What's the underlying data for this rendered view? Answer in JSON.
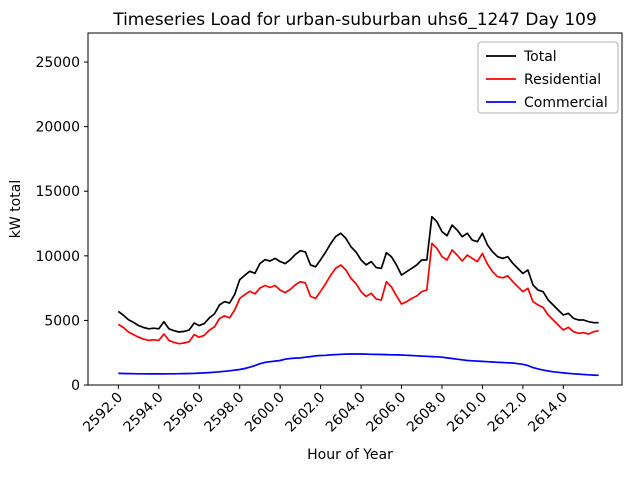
{
  "window": {
    "background": "#ffffff"
  },
  "chart_data": {
    "type": "line",
    "title": "Timeseries Load for urban-suburban uhs6_1247  Day 109",
    "xlabel": "Hour of Year",
    "ylabel": "kW total",
    "grid": false,
    "legend_position": "upper right",
    "xlim": [
      2590.5,
      2616.9
    ],
    "ylim": [
      0,
      27250
    ],
    "x_ticks": [
      2592,
      2594,
      2596,
      2598,
      2600,
      2602,
      2604,
      2606,
      2608,
      2610,
      2612,
      2614
    ],
    "x_tick_labels": [
      "2592.0",
      "2594.0",
      "2596.0",
      "2598.0",
      "2600.0",
      "2602.0",
      "2604.0",
      "2606.0",
      "2608.0",
      "2610.0",
      "2612.0",
      "2614.0"
    ],
    "y_ticks": [
      0,
      5000,
      10000,
      15000,
      20000,
      25000
    ],
    "y_tick_labels": [
      "0",
      "5000",
      "10000",
      "15000",
      "20000",
      "25000"
    ],
    "x_start": 2592.0,
    "x_step": 0.25,
    "series": [
      {
        "name": "Total",
        "color": "#000000",
        "values": [
          5700,
          5400,
          5050,
          4850,
          4600,
          4450,
          4350,
          4400,
          4350,
          4900,
          4350,
          4200,
          4100,
          4150,
          4250,
          4800,
          4600,
          4750,
          5200,
          5500,
          6200,
          6450,
          6350,
          7000,
          8150,
          8500,
          8800,
          8650,
          9400,
          9700,
          9600,
          9800,
          9550,
          9400,
          9700,
          10100,
          10400,
          10300,
          9300,
          9150,
          9700,
          10300,
          10950,
          11500,
          11740,
          11350,
          10700,
          10300,
          9675,
          9300,
          9550,
          9100,
          9030,
          10240,
          9930,
          9290,
          8510,
          8770,
          9030,
          9290,
          9675,
          9675,
          13030,
          12640,
          11870,
          11560,
          12380,
          12000,
          11480,
          11740,
          11220,
          11090,
          11740,
          10840,
          10320,
          9930,
          9800,
          9930,
          9420,
          9030,
          8640,
          8900,
          7740,
          7350,
          7225,
          6580,
          6190,
          5800,
          5420,
          5550,
          5160,
          5030,
          5030,
          4900,
          4825,
          4825
        ]
      },
      {
        "name": "Residential",
        "color": "#ff0000",
        "values": [
          4700,
          4450,
          4100,
          3900,
          3700,
          3550,
          3450,
          3500,
          3450,
          3950,
          3450,
          3300,
          3200,
          3250,
          3350,
          3900,
          3700,
          3850,
          4250,
          4500,
          5150,
          5350,
          5200,
          5800,
          6700,
          7000,
          7250,
          7050,
          7500,
          7700,
          7550,
          7700,
          7350,
          7150,
          7400,
          7750,
          8000,
          7900,
          6850,
          6700,
          7250,
          7850,
          8500,
          9050,
          9290,
          8900,
          8250,
          7850,
          7225,
          6850,
          7100,
          6650,
          6580,
          8000,
          7600,
          6900,
          6270,
          6450,
          6700,
          6890,
          7225,
          7353,
          10965,
          10580,
          9930,
          9675,
          10450,
          10060,
          9600,
          10060,
          9800,
          9550,
          10190,
          9350,
          8770,
          8385,
          8300,
          8450,
          8000,
          7612,
          7225,
          7484,
          6450,
          6192,
          6000,
          5420,
          5030,
          4640,
          4257,
          4464,
          4128,
          4000,
          4048,
          3947,
          4128,
          4200
        ]
      },
      {
        "name": "Commercial",
        "color": "#0000ff",
        "values": [
          900,
          890,
          880,
          875,
          870,
          865,
          860,
          860,
          860,
          860,
          865,
          870,
          875,
          880,
          890,
          900,
          920,
          940,
          960,
          990,
          1020,
          1060,
          1100,
          1150,
          1200,
          1280,
          1380,
          1500,
          1650,
          1750,
          1800,
          1850,
          1900,
          2000,
          2050,
          2080,
          2100,
          2150,
          2200,
          2250,
          2280,
          2300,
          2330,
          2350,
          2380,
          2390,
          2400,
          2400,
          2400,
          2390,
          2380,
          2370,
          2360,
          2350,
          2340,
          2330,
          2320,
          2300,
          2280,
          2260,
          2240,
          2220,
          2200,
          2180,
          2150,
          2100,
          2050,
          2000,
          1950,
          1900,
          1870,
          1850,
          1830,
          1800,
          1780,
          1760,
          1740,
          1720,
          1700,
          1650,
          1600,
          1500,
          1350,
          1250,
          1150,
          1080,
          1020,
          980,
          940,
          900,
          870,
          840,
          810,
          790,
          770,
          750
        ]
      }
    ]
  }
}
